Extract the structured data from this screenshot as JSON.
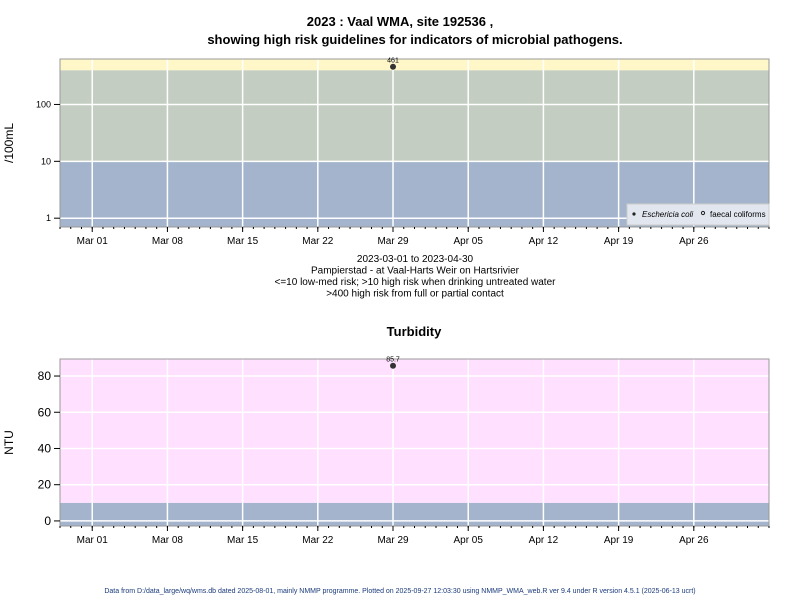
{
  "colors": {
    "low_risk_band": "#a3b4cc",
    "high_risk_drinking_band": "#c3cdc1",
    "high_risk_contact_band": "#fff7c8",
    "turbidity_band": "#ffe0ff",
    "grid": "#ffffff",
    "frame": "#999999",
    "point": "#333333"
  },
  "footer": "Data from D:/data_large/wq/wms.db dated 2025-08-01, mainly NMMP programme. Plotted on 2025-09-27 12:03:30 using NMMP_WMA_web.R ver 9.4 under R version 4.5.1 (2025-06-13 ucrt)",
  "chart_data": [
    {
      "type": "scatter",
      "title": [
        "2023 : Vaal WMA, site 192536 ,",
        "showing high risk guidelines for indicators of microbial pathogens."
      ],
      "ylabel": "/100mL",
      "yscale": "log",
      "ylim": [
        0.7,
        630
      ],
      "yticks": [
        1,
        10,
        100
      ],
      "ytick_labels": [
        "1",
        "10",
        "100"
      ],
      "xlim": [
        "2023-02-26",
        "2023-05-03"
      ],
      "xticks": [
        "2023-03-01",
        "2023-03-08",
        "2023-03-15",
        "2023-03-22",
        "2023-03-29",
        "2023-04-05",
        "2023-04-12",
        "2023-04-19",
        "2023-04-26"
      ],
      "xtick_labels": [
        "Mar 01",
        "Mar 08",
        "Mar 15",
        "Mar 22",
        "Mar 29",
        "Apr 05",
        "Apr 12",
        "Apr 19",
        "Apr 26"
      ],
      "grid": true,
      "bands": [
        {
          "from": 0.7,
          "to": 10,
          "color": "#a3b4cc"
        },
        {
          "from": 10,
          "to": 400,
          "color": "#c3cdc1"
        },
        {
          "from": 400,
          "to": 630,
          "color": "#fff7c8"
        }
      ],
      "series": [
        {
          "name": "Eschericia coli",
          "marker": "filled",
          "points": [
            {
              "x": "2023-03-29",
              "y": 461,
              "label": "461"
            }
          ]
        },
        {
          "name": "faecal coliforms",
          "marker": "open",
          "points": []
        }
      ],
      "legend_placement": "bottom-right",
      "subtitle": [
        "2023-03-01 to 2023-04-30",
        "Pampierstad - at Vaal-Harts Weir on Hartsrivier",
        "<=10 low-med risk; >10 high risk when drinking untreated water",
        ">400 high risk from full or partial contact"
      ]
    },
    {
      "type": "scatter",
      "title": "Turbidity",
      "ylabel": "NTU",
      "ylim": [
        -2.8,
        89.4
      ],
      "yticks": [
        0,
        20,
        40,
        60,
        80
      ],
      "ytick_labels": [
        "0",
        "20",
        "40",
        "60",
        "80"
      ],
      "xlim": [
        "2023-02-26",
        "2023-05-03"
      ],
      "xticks": [
        "2023-03-01",
        "2023-03-08",
        "2023-03-15",
        "2023-03-22",
        "2023-03-29",
        "2023-04-05",
        "2023-04-12",
        "2023-04-19",
        "2023-04-26"
      ],
      "xtick_labels": [
        "Mar 01",
        "Mar 08",
        "Mar 15",
        "Mar 22",
        "Mar 29",
        "Apr 05",
        "Apr 12",
        "Apr 19",
        "Apr 26"
      ],
      "grid": true,
      "bands": [
        {
          "from": -2.8,
          "to": 10,
          "color": "#a3b4cc"
        },
        {
          "from": 10,
          "to": 89.4,
          "color": "#ffe0ff"
        }
      ],
      "series": [
        {
          "marker": "filled",
          "points": [
            {
              "x": "2023-03-29",
              "y": 85.7,
              "label": "85.7"
            }
          ]
        }
      ]
    }
  ]
}
